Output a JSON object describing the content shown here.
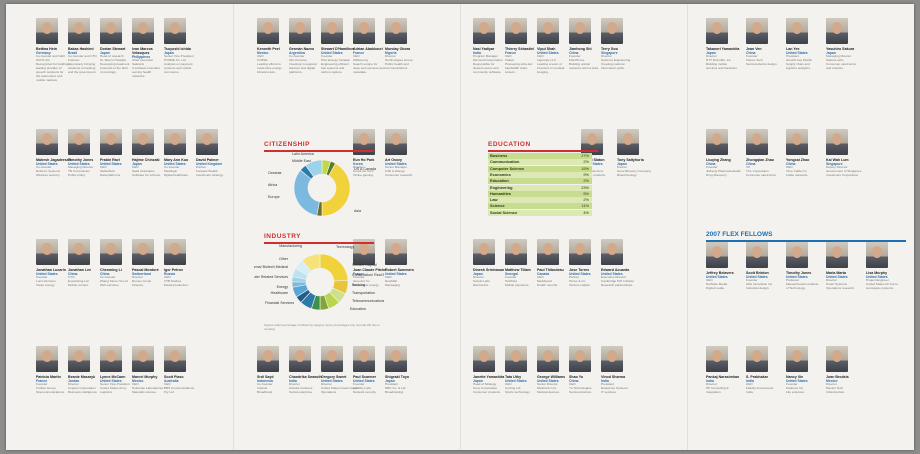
{
  "profiles": [
    {
      "name": "Bettina Hein",
      "country": "Germany",
      "text": "Co-founder and CEO\nSVOX AG\nRecognized for building a leading provider of\nspeech solutions for\nthe automotive and\nmobile markets."
    },
    {
      "name": "Bakas Hashimi",
      "country": "Brazil",
      "text": "Co-founder and CTO\nFuturion\nA company bringing\nsolutions to banking\nand the government."
    },
    {
      "name": "Dorian Stewart",
      "country": "Japan",
      "text": "Head of research\nSt. Mary's Hospital\nDeveloping treatment\nprotocols in the field\nof oncology."
    },
    {
      "name": "Ivan Marcos Velasquez",
      "country": "Philippines",
      "text": "Chief executive\nSalutaris\nA software innovator\nserving health\nnetworks."
    },
    {
      "name": "Tsuyoshi Ichida",
      "country": "Japan",
      "text": "Senior Vice President\nPOSRE Co. Ltd\nAnalysis on payment\nsystems and mobile\ncommerce."
    },
    {
      "name": "Kenneth Peel",
      "country": "Mexico",
      "text": "CEO\nCOBLE\nLeading efforts to\nmodernize energy\ninfrastructure."
    },
    {
      "name": "Germán Nazvo",
      "country": "Argentina",
      "text": "Co-founder\nOlé Ventures\nInvesting in regional\nstartups and digital\nplatforms."
    },
    {
      "name": "Stewart D'Hamilton",
      "country": "United States",
      "text": "Founder\nHGL Energy Canada\nEngineering efficient\nfuel systems and\ncarbon capture."
    },
    {
      "name": "Adrian Abakkouri",
      "country": "France",
      "text": "CEO\nWildcounty\nSearch engine for\ndeep web services and\nmetadata."
    },
    {
      "name": "Monday Obora",
      "country": "Nigeria",
      "text": "Director\nTechnologies Group\nPublic health and\ncommunications."
    },
    {
      "name": "Nasi Yadiyar",
      "country": "India",
      "text": "Program Manager\nMicrosoft Corporation\nResponsible for\nshared source and\ncommunity software."
    },
    {
      "name": "Thierry Sébastiel",
      "country": "France",
      "text": "CEO\nVideal\nPioneering ultra-low\nbandwidth video\ncodecs."
    },
    {
      "name": "Vipul Shah",
      "country": "United States",
      "text": "CEO\nIngenuity LLC\nLeading a team of\ninventors in medical\nimaging."
    },
    {
      "name": "Jianhong Shi",
      "country": "China",
      "text": "Founder\nFiberHome\nBuilding optical\nnetworks across Asia."
    },
    {
      "name": "Terry Goo",
      "country": "Singapore",
      "text": "Director\nSystems Engineering\nCreating national\ninformation grids."
    },
    {
      "name": "Takanori Yamashita",
      "country": "Japan",
      "text": "Director\nNTT DoCoMo, Inc\nBuilding mobile\nservices and handsets."
    },
    {
      "name": "Jean Ven",
      "country": "China",
      "text": "Founder\nVeloce Tech\nSemiconductor design."
    },
    {
      "name": "Lan Yee",
      "country": "United States",
      "text": "President\nGrowth Ace Pacific\nSupply chain and\nlogistics analytics."
    },
    {
      "name": "Yasuhiro Sakura",
      "country": "Japan",
      "text": "Managing Director\nSakura Labs\nConsumer electronics\nand robotics."
    },
    {
      "name": "Mahesh Jagadeesan",
      "country": "United States",
      "text": "Co-founder\nRubicon Systems\nWireless security."
    },
    {
      "name": "Timothy Jones",
      "country": "United States",
      "text": "Managing Director\nTB Commission\nPublic policy."
    },
    {
      "name": "Prabin Ravi",
      "country": "United States",
      "text": "CEO\nStellarfield\nData platforms."
    },
    {
      "name": "Hajime Chinzaki",
      "country": "Japan",
      "text": "CEO\nSatta Graduates\nSoftware for schools."
    },
    {
      "name": "Mary Ann Kuo",
      "country": "United States",
      "text": "Co-founder\nMedilogic\nDigital healthcare."
    },
    {
      "name": "David Palmer",
      "country": "United Kingdom",
      "text": "Partner\nForward Wealth\nInvestment strategy."
    },
    {
      "name": "Eun Ho Park",
      "country": "Korea",
      "text": "Director\nKorea Go Tech\nOnline gaming."
    },
    {
      "name": "Art Ossey",
      "country": "United States",
      "text": "Senior Manager\nFrith & Wenge\nConsumer research."
    },
    {
      "name": "Robert Slaton",
      "country": "United States",
      "text": "CEO\nCSIConnections\nNetwork products."
    },
    {
      "name": "Tony Saltyhuria",
      "country": "Japan",
      "text": "Partner\nGene Brewery Company\nBiotechnology."
    },
    {
      "name": "Liuqing Zhang",
      "country": "China",
      "text": "Founder\nJiaFeng Pharmaceuticals\nDrug discovery."
    },
    {
      "name": "Zhongqian Zhao",
      "country": "China",
      "text": "VP\nTCL Corporation\nConsumer electronics."
    },
    {
      "name": "Yongcai Zhao",
      "country": "China",
      "text": "CEO\nTime Cable Co\nCable networks."
    },
    {
      "name": "Kai Wah Lum",
      "country": "Singapore",
      "text": "Deputy Director\nGovernment of Singapore\nInvestment Corporation."
    },
    {
      "name": "Jonathan Lucarin",
      "country": "United States",
      "text": "Founder\nLumi Ventures\nClean energy."
    },
    {
      "name": "Jonathan Lee",
      "country": "China",
      "text": "CTO\nEverlasting Ltd\nMobile content."
    },
    {
      "name": "Chenming Li",
      "country": "China",
      "text": "Co-founder\nZhang Stone Hu Ltd\nWeb services."
    },
    {
      "name": "Pascal Mordoré",
      "country": "Switzerland",
      "text": "Director\nRemus Group\nFinance."
    },
    {
      "name": "Igor Petrov",
      "country": "Russia",
      "text": "CEO\nVTB Studios\nMedia production."
    },
    {
      "name": "Juan Claude Pitche",
      "country": "France",
      "text": "Founder\nGreenlot Co\nRenewable energy."
    },
    {
      "name": "Robert Summers",
      "country": "United States",
      "text": "CEO\nNewMail\nMessaging."
    },
    {
      "name": "Dinesh Srinivasan",
      "country": "Japan",
      "text": "Director\nSuzuki Labs\nElectronics."
    },
    {
      "name": "Matthew Tiliam",
      "country": "Senegal",
      "text": "Founder\nTelAfrica\nMobile payments."
    },
    {
      "name": "Paul Thibodeau",
      "country": "Canada",
      "text": "CEO\nMediboard\nHealth records."
    },
    {
      "name": "Jose Torres",
      "country": "United States",
      "text": "Partner\nTorres & Co\nVenture capital."
    },
    {
      "name": "Edward Acuarda",
      "country": "United States",
      "text": "Executive Director\nCambridge MIT Institute\nResearch partnerships."
    },
    {
      "name": "Jeffrey Belavers",
      "country": "United States",
      "text": "CEO\nNetSuite Media\nDigital media."
    },
    {
      "name": "Scott Brinton",
      "country": "United States",
      "text": "Founder\nAbis Innovation Inc\nIndustrial design."
    },
    {
      "name": "Timothy Jones",
      "country": "United States",
      "text": "Professor\nMassachusetts Institute\nof Technology."
    },
    {
      "name": "Maria Marta",
      "country": "United States",
      "text": "Director\nSmart Systems\nOperations research."
    },
    {
      "name": "Lisa Murphy",
      "country": "United States",
      "text": "Project Engineer\nUnited States Air Force\nAerospace systems."
    },
    {
      "name": "Patricia Martin",
      "country": "France",
      "text": "Founder\nVoxNet Group\nTelecommunications."
    },
    {
      "name": "Beanie Masaryk",
      "country": "Jordan",
      "text": "Director\nCognos Corporation\nBusiness intelligence."
    },
    {
      "name": "Lynne McCann",
      "country": "United States",
      "text": "Senior Vice President\nUnited States Army\nLogistics."
    },
    {
      "name": "Marcel Murphy",
      "country": "Mexico",
      "text": "CEO\nHolloman Laboratories\nMaterials science."
    },
    {
      "name": "Scott Piaso",
      "country": "Australia",
      "text": "CEO\nBBS Communications\nPty Ltd."
    },
    {
      "name": "Srdi Sayd",
      "country": "Indonesia",
      "text": "Co-founder\nIndosat\nBroadband."
    },
    {
      "name": "Chandrika Swaruth",
      "country": "India",
      "text": "Director\nAshoka Ventures\nSocial enterprise."
    },
    {
      "name": "Gregory Sweet",
      "country": "United States",
      "text": "Director\nUnited States Coast Guard\nOperations."
    },
    {
      "name": "Paul Scarmer",
      "country": "United States",
      "text": "Founder\nLucidity Labs\nNetwork security."
    },
    {
      "name": "Shigeaki Toyo",
      "country": "Japan",
      "text": "President\nNBC Co. & Ltd\nBroadcasting."
    },
    {
      "name": "Janette Yamashita",
      "country": "Japan",
      "text": "Head of Strategy\nSony Corporation\nConsumer products."
    },
    {
      "name": "Tata Uthy",
      "country": "United States",
      "text": "CEO\nCycling Ltd\nSports technology."
    },
    {
      "name": "George Williams",
      "country": "United States",
      "text": "Senior Director\nMedtronic Ltd\nMedical devices."
    },
    {
      "name": "Shao Yu",
      "country": "China",
      "text": "CEO\nYu Technologies\nSemiconductors."
    },
    {
      "name": "Vinod Sharma",
      "country": "India",
      "text": "President\nEnterprise Systems\nIT services."
    },
    {
      "name": "Pankaj Narasimhan",
      "country": "India",
      "text": "Director\nHP Consulting &\nIntegration."
    },
    {
      "name": "S. Prabhakar",
      "country": "India",
      "text": "CEO\nFidelity Investments\nIndia."
    },
    {
      "name": "Nancy Xie",
      "country": "United States",
      "text": "Founder\nKadence Inc\nLife sciences."
    },
    {
      "name": "Joan Brodsis",
      "country": "Mexico",
      "text": "Director\nMexico Tech\nInfrastructure."
    }
  ],
  "citizenship": {
    "title": "CITIZENSHIP",
    "slices": [
      {
        "label": "Latin America",
        "value": 5,
        "color": "#bfd94a"
      },
      {
        "label": "Middle East",
        "value": 3,
        "color": "#5b7a2a"
      },
      {
        "label": "US & Canada",
        "value": 42,
        "color": "#f2d23a"
      },
      {
        "label": "Oceania",
        "value": 3,
        "color": "#6d6f2e"
      },
      {
        "label": "Asia",
        "value": 33,
        "color": "#7cb9de"
      },
      {
        "label": "Africa",
        "value": 4,
        "color": "#2c7aa9"
      },
      {
        "label": "Europe",
        "value": 10,
        "color": "#9ad3ea"
      }
    ]
  },
  "industry": {
    "title": "INDUSTRY",
    "slices": [
      {
        "label": "Manufacturing",
        "value": 24,
        "color": "#f2d23a"
      },
      {
        "label": "Other",
        "value": 8,
        "color": "#e8c43a"
      },
      {
        "label": "Pharma/ Biotech Medical",
        "value": 6,
        "color": "#cde08b"
      },
      {
        "label": "Computer Related Services",
        "value": 7,
        "color": "#b9d64d"
      },
      {
        "label": "Energy",
        "value": 5,
        "color": "#7fa63a"
      },
      {
        "label": "Healthcare",
        "value": 5,
        "color": "#3f8f4d"
      },
      {
        "label": "Financial Services",
        "value": 7,
        "color": "#2c7aa9"
      },
      {
        "label": "Education",
        "value": 4,
        "color": "#1f5d8a"
      },
      {
        "label": "Telecommunications",
        "value": 6,
        "color": "#5aa6d6"
      },
      {
        "label": "Transportation",
        "value": 3,
        "color": "#7cb9de"
      },
      {
        "label": "Banking",
        "value": 3,
        "color": "#9ad3ea"
      },
      {
        "label": "Construction/ Real Estate",
        "value": 5,
        "color": "#bfe2f0"
      },
      {
        "label": "Venture Capital",
        "value": 6,
        "color": "#d8eef6"
      },
      {
        "label": "Technology",
        "value": 11,
        "color": "#f6e27a"
      }
    ],
    "note": "Figures reflect percentage of fellows by category. Some percentages may not total 100 due to rounding."
  },
  "education": {
    "title": "EDUCATION",
    "rows": [
      {
        "label": "Business",
        "value": "27%"
      },
      {
        "label": "Communication",
        "value": "2%"
      },
      {
        "label": "Computer Science",
        "value": "15%"
      },
      {
        "label": "Economics",
        "value": "9%"
      },
      {
        "label": "Education",
        "value": "2%"
      },
      {
        "label": "Engineering",
        "value": "23%"
      },
      {
        "label": "Humanities",
        "value": "5%"
      },
      {
        "label": "Law",
        "value": "2%"
      },
      {
        "label": "Science",
        "value": "11%"
      },
      {
        "label": "Social Science",
        "value": "4%"
      }
    ],
    "colors": [
      "#c8dc8f",
      "#dce9b4"
    ]
  },
  "flex": {
    "title": "2007 FLEX FELLOWS"
  }
}
